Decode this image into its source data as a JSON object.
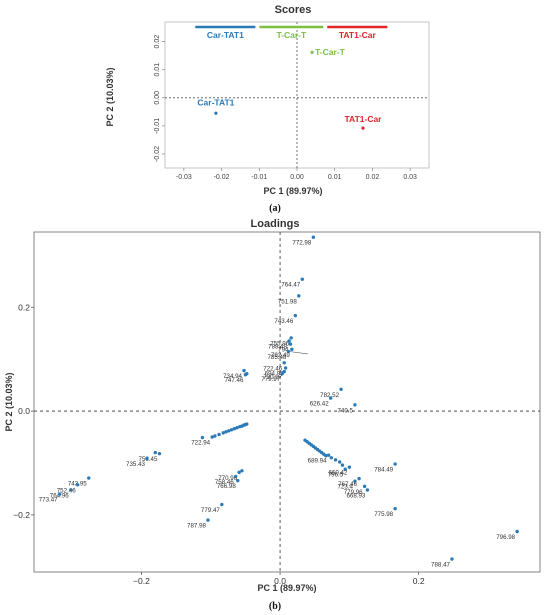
{
  "chart_data": [
    {
      "type": "scatter",
      "title": "Scores",
      "xlabel": "PC 1 (89.97%)",
      "ylabel": "PC 2 (10.03%)",
      "xlim": [
        -0.035,
        0.035
      ],
      "ylim": [
        -0.025,
        0.027
      ],
      "xticks": [
        -0.03,
        -0.02,
        -0.01,
        0.0,
        0.01,
        0.02,
        0.03
      ],
      "xtick_labels": [
        "-0.03",
        "-0.02",
        "-0.01",
        "0.00",
        "0.01",
        "0.02",
        "0.03"
      ],
      "yticks": [
        0.02,
        0.01,
        0.0,
        -0.01,
        -0.02
      ],
      "ytick_labels": [
        "0.02",
        "0.01",
        "0.00",
        "-0.01",
        "-0.02"
      ],
      "grid": false,
      "reference_lines": {
        "x": 0,
        "y": 0
      },
      "legend": [
        {
          "name": "Car-TAT1",
          "color": "#2a7ab8",
          "x_range": [
            -0.0275,
            -0.0105
          ]
        },
        {
          "name": "T-Car-T",
          "color": "#7cc042",
          "x_range": [
            -0.0105,
            0.0075
          ]
        },
        {
          "name": "TAT1-Car",
          "color": "#e0252b",
          "x_range": [
            0.0075,
            0.0245
          ]
        }
      ],
      "points": [
        {
          "label": "Car-TAT1",
          "x": -0.0215,
          "y": -0.0055,
          "color": "#2a7ab8"
        },
        {
          "label": "T-Car-T",
          "x": 0.004,
          "y": 0.0162,
          "color": "#7cc042"
        },
        {
          "label": "TAT1-Car",
          "x": 0.0175,
          "y": -0.0108,
          "color": "#e0252b"
        }
      ],
      "caption": "(a)"
    },
    {
      "type": "scatter",
      "title": "Loadings",
      "xlabel": "PC 1 (89.97%)",
      "ylabel": "PC 2 (10.03%)",
      "xlim": [
        -0.355,
        0.375
      ],
      "ylim": [
        -0.31,
        0.345
      ],
      "xticks": [
        -0.2,
        0.0,
        0.2
      ],
      "xtick_labels": [
        "−0.2",
        "0.0",
        "0.2"
      ],
      "yticks": [
        0.2,
        0.0,
        -0.2
      ],
      "ytick_labels": [
        "0.2",
        "0.0",
        "−0.2"
      ],
      "grid": false,
      "reference_lines": {
        "x": 0,
        "y": 0
      },
      "point_color": "#2a7ab8",
      "labeled_points": [
        {
          "label": "772.98",
          "x": 0.048,
          "y": 0.335
        },
        {
          "label": "764.47",
          "x": 0.032,
          "y": 0.254
        },
        {
          "label": "751.98",
          "x": 0.027,
          "y": 0.222
        },
        {
          "label": "743.46",
          "x": 0.022,
          "y": 0.184
        },
        {
          "label": "755.96",
          "x": 0.016,
          "y": 0.141
        },
        {
          "label": "788.48",
          "x": 0.013,
          "y": 0.135
        },
        {
          "label": "794",
          "x": 0.015,
          "y": 0.129
        },
        {
          "label": "785.48",
          "x": 0.012,
          "y": 0.115
        },
        {
          "label": "792.49",
          "x": 0.017,
          "y": 0.119
        },
        {
          "label": "722.46",
          "x": 0.006,
          "y": 0.093
        },
        {
          "label": "694.93",
          "x": 0.008,
          "y": 0.083
        },
        {
          "label": "779.97",
          "x": 0.003,
          "y": 0.072
        },
        {
          "label": "730.97",
          "x": 0.006,
          "y": 0.076
        },
        {
          "label": "734.94",
          "x": -0.052,
          "y": 0.078
        },
        {
          "label": "747.46",
          "x": -0.05,
          "y": 0.07
        },
        {
          "label": "782.52",
          "x": 0.088,
          "y": 0.042
        },
        {
          "label": "740.5",
          "x": 0.108,
          "y": 0.012
        },
        {
          "label": "626.42",
          "x": 0.073,
          "y": 0.025
        },
        {
          "label": "722.94",
          "x": -0.098,
          "y": -0.05
        },
        {
          "label": "756.45",
          "x": -0.174,
          "y": -0.082
        },
        {
          "label": "735.43",
          "x": -0.192,
          "y": -0.091
        },
        {
          "label": "743.95",
          "x": -0.276,
          "y": -0.129
        },
        {
          "label": "752.46",
          "x": -0.292,
          "y": -0.142
        },
        {
          "label": "764.96",
          "x": -0.302,
          "y": -0.152
        },
        {
          "label": "773.47",
          "x": -0.318,
          "y": -0.16
        },
        {
          "label": "770.96",
          "x": -0.059,
          "y": -0.118
        },
        {
          "label": "758.46",
          "x": -0.064,
          "y": -0.126
        },
        {
          "label": "766.98",
          "x": -0.061,
          "y": -0.134
        },
        {
          "label": "779.47",
          "x": -0.084,
          "y": -0.18
        },
        {
          "label": "787.98",
          "x": -0.104,
          "y": -0.21
        },
        {
          "label": "689.94",
          "x": 0.07,
          "y": -0.085
        },
        {
          "label": "796.5",
          "x": 0.094,
          "y": -0.112
        },
        {
          "label": "660.42",
          "x": 0.1,
          "y": -0.108
        },
        {
          "label": "723.4",
          "x": 0.108,
          "y": -0.135
        },
        {
          "label": "767.46",
          "x": 0.114,
          "y": -0.13
        },
        {
          "label": "779.96",
          "x": 0.122,
          "y": -0.145
        },
        {
          "label": "668.93",
          "x": 0.126,
          "y": -0.152
        },
        {
          "label": "784.49",
          "x": 0.166,
          "y": -0.102
        },
        {
          "label": "775.98",
          "x": 0.166,
          "y": -0.188
        },
        {
          "label": "796.98",
          "x": 0.342,
          "y": -0.232
        },
        {
          "label": "788.47",
          "x": 0.248,
          "y": -0.285
        }
      ],
      "connector_segments": [
        {
          "from": [
            0.012,
            0.115
          ],
          "to": [
            0.04,
            0.11
          ]
        }
      ],
      "unlabeled_points": [
        [
          -0.094,
          -0.048
        ],
        [
          -0.088,
          -0.045
        ],
        [
          -0.082,
          -0.042
        ],
        [
          -0.078,
          -0.04
        ],
        [
          -0.074,
          -0.038
        ],
        [
          -0.07,
          -0.036
        ],
        [
          -0.066,
          -0.034
        ],
        [
          -0.062,
          -0.032
        ],
        [
          -0.058,
          -0.03
        ],
        [
          -0.055,
          -0.029
        ],
        [
          -0.052,
          -0.027
        ],
        [
          -0.05,
          -0.026
        ],
        [
          -0.048,
          -0.025
        ],
        [
          0.036,
          -0.056
        ],
        [
          0.039,
          -0.059
        ],
        [
          0.042,
          -0.062
        ],
        [
          0.045,
          -0.065
        ],
        [
          0.048,
          -0.068
        ],
        [
          0.051,
          -0.071
        ],
        [
          0.054,
          -0.074
        ],
        [
          0.057,
          -0.077
        ],
        [
          0.06,
          -0.08
        ],
        [
          0.063,
          -0.083
        ],
        [
          0.066,
          -0.086
        ],
        [
          0.074,
          -0.09
        ],
        [
          0.08,
          -0.094
        ],
        [
          0.086,
          -0.098
        ],
        [
          0.09,
          -0.104
        ],
        [
          -0.112,
          -0.051
        ],
        [
          -0.18,
          -0.08
        ],
        [
          -0.055,
          -0.115
        ],
        [
          -0.048,
          0.072
        ]
      ],
      "caption": "(b)"
    }
  ]
}
